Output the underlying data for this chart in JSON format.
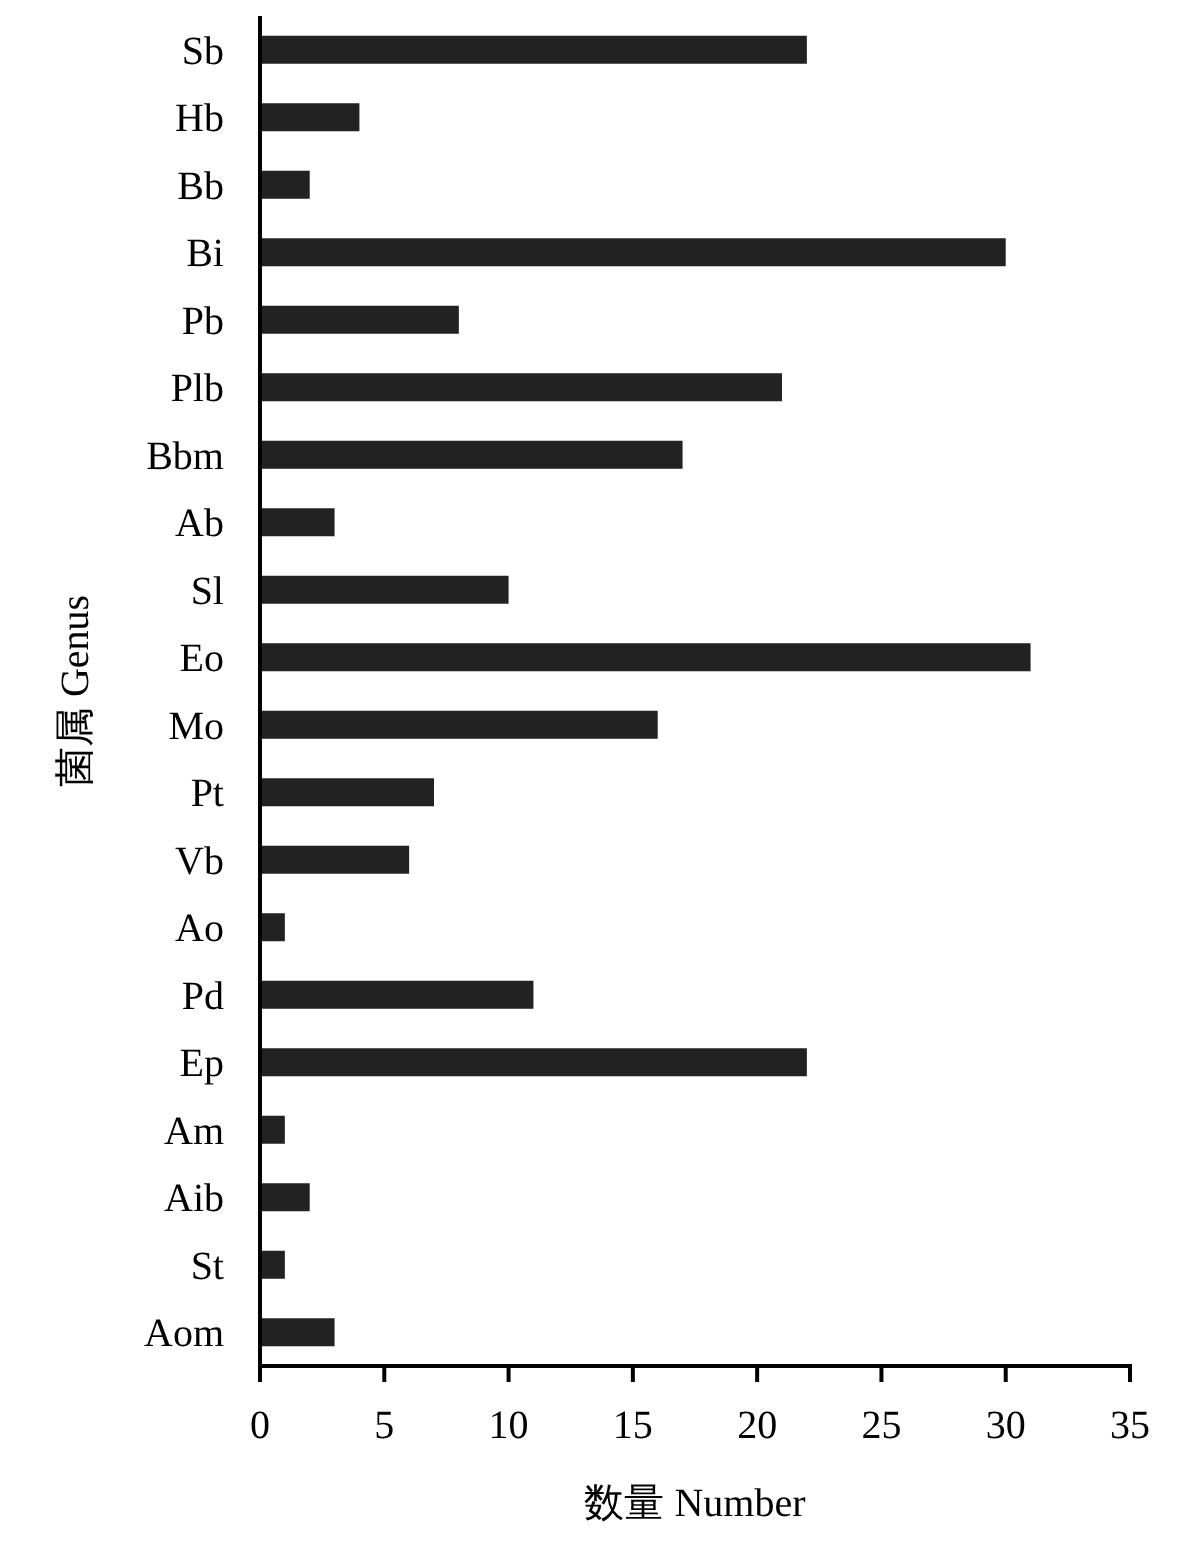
{
  "chart_data": {
    "type": "bar",
    "orientation": "horizontal",
    "xlabel": "数量 Number",
    "ylabel": "菌属 Genus",
    "categories": [
      "Sb",
      "Hb",
      "Bb",
      "Bi",
      "Pb",
      "Plb",
      "Bbm",
      "Ab",
      "Sl",
      "Eo",
      "Mo",
      "Pt",
      "Vb",
      "Ao",
      "Pd",
      "Ep",
      "Am",
      "Aib",
      "St",
      "Aom"
    ],
    "values": [
      22,
      4,
      2,
      30,
      8,
      21,
      17,
      3,
      10,
      31,
      16,
      7,
      6,
      1,
      11,
      22,
      1,
      2,
      1,
      3
    ],
    "color": "#222222",
    "xlim": [
      0,
      35
    ],
    "xticks": [
      0,
      5,
      10,
      15,
      20,
      25,
      30,
      35
    ]
  }
}
